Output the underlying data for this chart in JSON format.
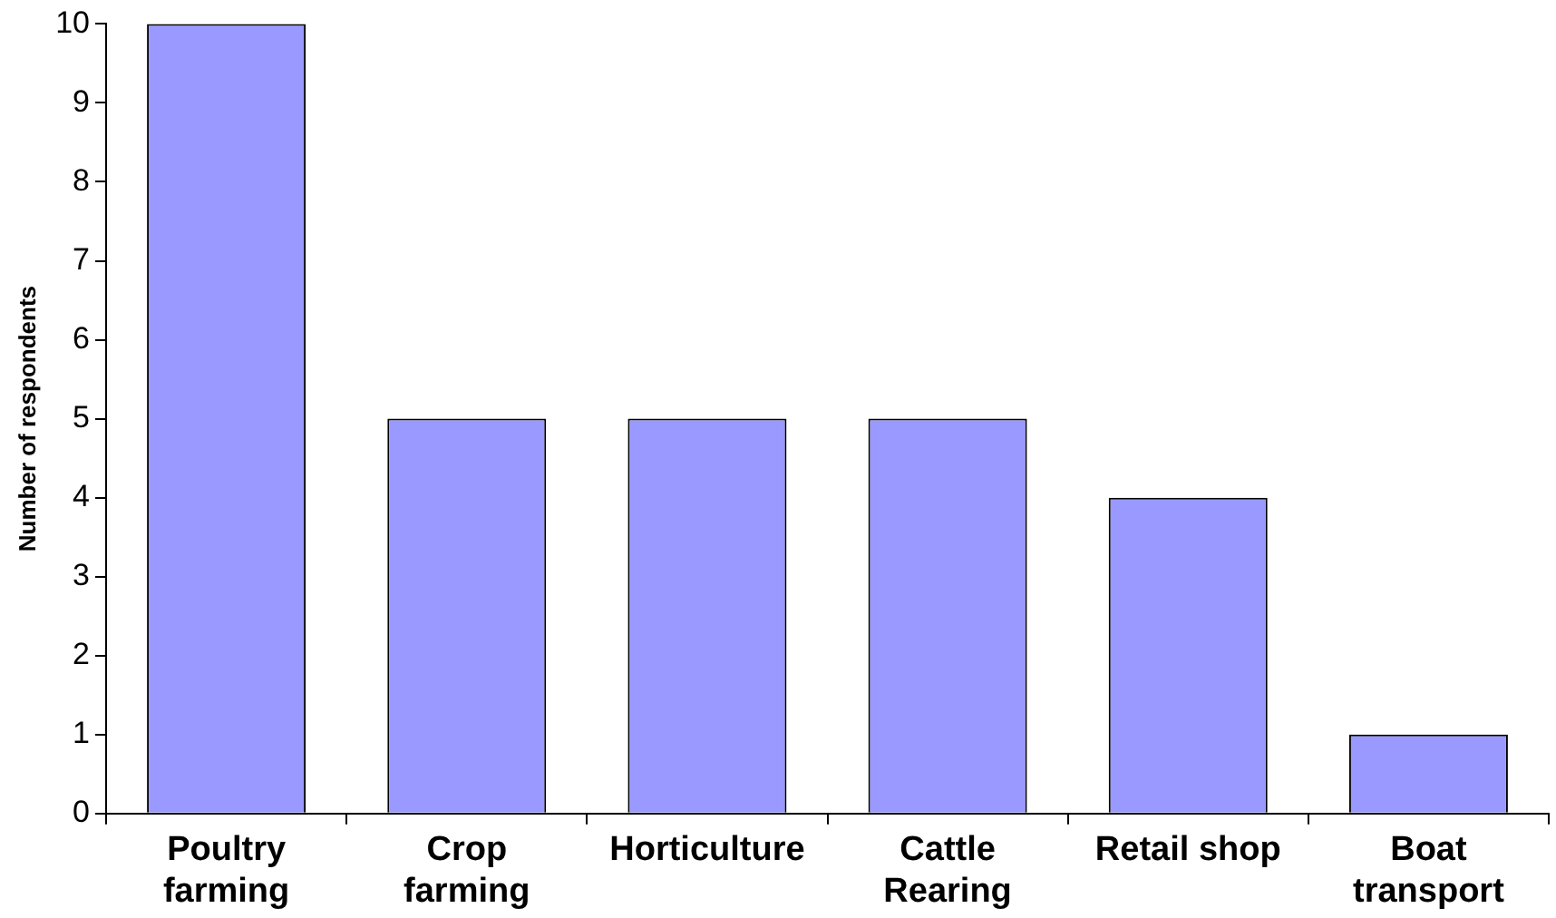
{
  "chart_data": {
    "type": "bar",
    "ylabel": "Number of respondents",
    "categories": [
      "Poultry\nfarming",
      "Crop\nfarming",
      "Horticulture",
      "Cattle\nRearing",
      "Retail shop",
      "Boat\ntransport"
    ],
    "values": [
      10,
      5,
      5,
      5,
      4,
      1
    ],
    "color": "#9999ff",
    "ylim": [
      0,
      10
    ],
    "yticks": [
      0,
      1,
      2,
      3,
      4,
      5,
      6,
      7,
      8,
      9,
      10
    ],
    "grid": false,
    "legend": false
  }
}
